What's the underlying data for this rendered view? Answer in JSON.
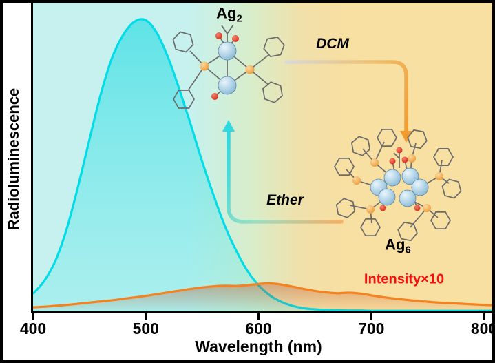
{
  "axis": {
    "xlabel": "Wavelength (nm)",
    "ylabel": "Radioluminescence"
  },
  "labels": {
    "ag2_base": "Ag",
    "ag2_sub": "2",
    "ag6_base": "Ag",
    "ag6_sub": "6",
    "dcm": "DCM",
    "ether": "Ether",
    "intensity": "Intensity×10"
  },
  "colors": {
    "ag2_curve": "#00dce8",
    "ag6_curve": "#f58220",
    "intensity_label": "#fa0d0d",
    "background_left": "#c6f1ee",
    "background_mid": "#d9edc9",
    "background_right": "#f8dfa2",
    "dcm_arrow": "#f39a2e",
    "ether_arrow": "#2fd9e2"
  },
  "chart_data": {
    "type": "line",
    "title": "",
    "xlabel": "Wavelength (nm)",
    "ylabel": "Radioluminescence",
    "xlim": [
      400,
      800
    ],
    "ylim": [
      0,
      1.06
    ],
    "x_ticks": [
      400,
      500,
      600,
      700,
      800
    ],
    "grid": false,
    "legend_position": "none",
    "annotations": [
      "Ag2",
      "Ag6",
      "DCM",
      "Ether",
      "Intensity×10"
    ],
    "series": [
      {
        "id": "ag2-spectrum",
        "name": "Ag2 radioluminescence (in DCM)",
        "color": "#00dce8",
        "fill": true,
        "x": [
          400,
          410,
          420,
          430,
          440,
          450,
          460,
          470,
          480,
          490,
          500,
          510,
          520,
          530,
          540,
          550,
          560,
          570,
          580,
          590,
          600,
          610,
          620,
          630,
          640,
          650,
          660,
          670,
          680,
          690,
          700,
          710,
          720,
          730,
          740,
          750,
          760,
          770,
          780,
          790,
          800,
          810
        ],
        "y": [
          0.06,
          0.105,
          0.175,
          0.285,
          0.43,
          0.59,
          0.745,
          0.87,
          0.95,
          0.995,
          1.0,
          0.955,
          0.87,
          0.76,
          0.64,
          0.515,
          0.4,
          0.295,
          0.21,
          0.14,
          0.09,
          0.055,
          0.033,
          0.019,
          0.011,
          0.007,
          0.005,
          0.004,
          0.003,
          0.003,
          0.002,
          0.002,
          0.002,
          0.002,
          0.002,
          0.002,
          0.002,
          0.002,
          0.002,
          0.002,
          0.002,
          0.002
        ]
      },
      {
        "id": "ag6-spectrum",
        "name": "Ag6 radioluminescence (Intensity ×10, in ether)",
        "color": "#f58220",
        "fill": true,
        "x": [
          400,
          410,
          420,
          430,
          440,
          450,
          460,
          470,
          480,
          490,
          500,
          510,
          520,
          530,
          540,
          550,
          560,
          570,
          580,
          590,
          600,
          610,
          620,
          630,
          640,
          650,
          660,
          670,
          680,
          690,
          700,
          710,
          720,
          730,
          740,
          750,
          760,
          770,
          780,
          790,
          800,
          810
        ],
        "y": [
          0.014,
          0.016,
          0.019,
          0.022,
          0.026,
          0.03,
          0.034,
          0.038,
          0.043,
          0.048,
          0.053,
          0.059,
          0.065,
          0.071,
          0.077,
          0.082,
          0.086,
          0.088,
          0.087,
          0.09,
          0.094,
          0.096,
          0.092,
          0.085,
          0.077,
          0.07,
          0.065,
          0.062,
          0.064,
          0.061,
          0.055,
          0.049,
          0.044,
          0.04,
          0.036,
          0.033,
          0.03,
          0.028,
          0.026,
          0.024,
          0.022,
          0.021
        ]
      }
    ]
  }
}
